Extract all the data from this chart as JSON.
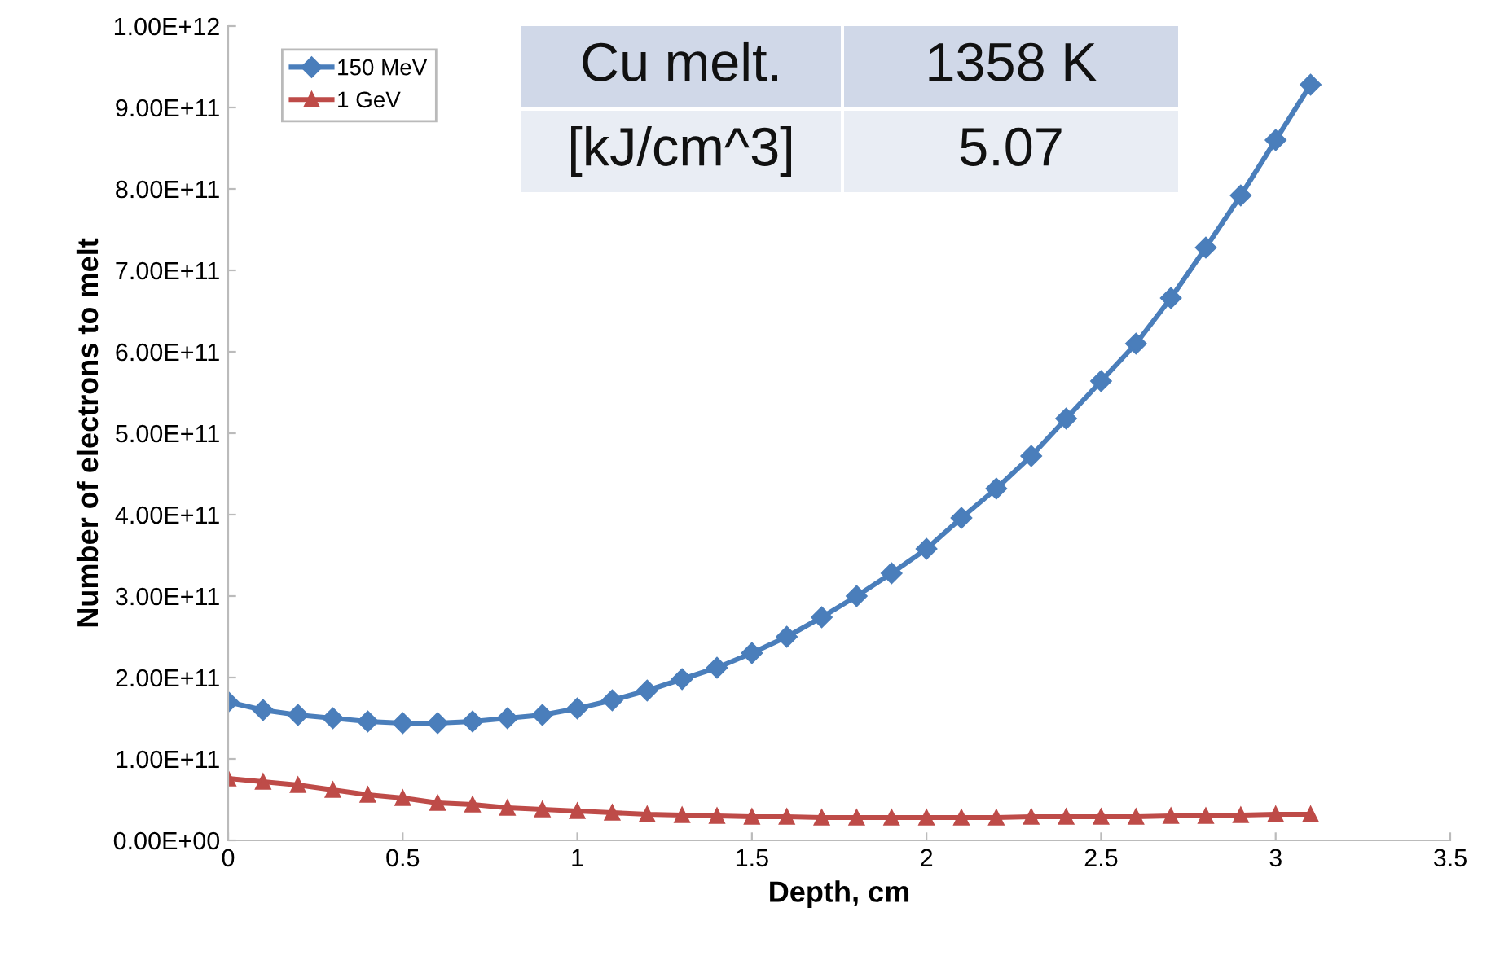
{
  "chart_data": {
    "type": "line",
    "xlabel": "Depth, cm",
    "ylabel": "Number of electrons to melt",
    "x": [
      0,
      0.1,
      0.2,
      0.3,
      0.4,
      0.5,
      0.6,
      0.7,
      0.8,
      0.9,
      1.0,
      1.1,
      1.2,
      1.3,
      1.4,
      1.5,
      1.6,
      1.7,
      1.8,
      1.9,
      2.0,
      2.1,
      2.2,
      2.3,
      2.4,
      2.5,
      2.6,
      2.7,
      2.8,
      2.9,
      3.0,
      3.1
    ],
    "series": [
      {
        "name": "150 MeV",
        "color": "#4a7ebb",
        "marker": "diamond",
        "values": [
          170000000000.0,
          160000000000.0,
          154000000000.0,
          150000000000.0,
          146000000000.0,
          144000000000.0,
          144000000000.0,
          146000000000.0,
          150000000000.0,
          154000000000.0,
          162000000000.0,
          172000000000.0,
          184000000000.0,
          198000000000.0,
          212000000000.0,
          230000000000.0,
          250000000000.0,
          274000000000.0,
          300000000000.0,
          328000000000.0,
          358000000000.0,
          396000000000.0,
          432000000000.0,
          472000000000.0,
          518000000000.0,
          564000000000.0,
          610000000000.0,
          666000000000.0,
          728000000000.0,
          792000000000.0,
          860000000000.0,
          928000000000.0
        ]
      },
      {
        "name": "1 GeV",
        "color": "#be4b48",
        "marker": "triangle",
        "values": [
          76000000000.0,
          72000000000.0,
          68000000000.0,
          62000000000.0,
          56000000000.0,
          52000000000.0,
          46000000000.0,
          44000000000.0,
          40000000000.0,
          38000000000.0,
          36000000000.0,
          34000000000.0,
          32000000000.0,
          31000000000.0,
          30000000000.0,
          29000000000.0,
          29000000000.0,
          28000000000.0,
          28000000000.0,
          28000000000.0,
          28000000000.0,
          28000000000.0,
          28000000000.0,
          29000000000.0,
          29000000000.0,
          29000000000.0,
          29000000000.0,
          30000000000.0,
          30000000000.0,
          31000000000.0,
          32000000000.0,
          32000000000.0
        ]
      }
    ],
    "xlim": [
      0,
      3.5
    ],
    "xticks": [
      0,
      0.5,
      1,
      1.5,
      2,
      2.5,
      3,
      3.5
    ],
    "ylim": [
      0,
      1000000000000.0
    ],
    "yticks": [
      {
        "value": 0,
        "label": "0.00E+00"
      },
      {
        "value": 100000000000.0,
        "label": "1.00E+11"
      },
      {
        "value": 200000000000.0,
        "label": "2.00E+11"
      },
      {
        "value": 300000000000.0,
        "label": "3.00E+11"
      },
      {
        "value": 400000000000.0,
        "label": "4.00E+11"
      },
      {
        "value": 500000000000.0,
        "label": "5.00E+11"
      },
      {
        "value": 600000000000.0,
        "label": "6.00E+11"
      },
      {
        "value": 700000000000.0,
        "label": "7.00E+11"
      },
      {
        "value": 800000000000.0,
        "label": "8.00E+11"
      },
      {
        "value": 900000000000.0,
        "label": "9.00E+11"
      },
      {
        "value": 1000000000000.0,
        "label": "1.00E+12"
      }
    ],
    "grid": false,
    "legend": "top left",
    "line_style": "solid",
    "annotations": [
      "Cu melt.",
      "1358 K",
      "[kJ/cm^3]",
      "5.07"
    ]
  }
}
